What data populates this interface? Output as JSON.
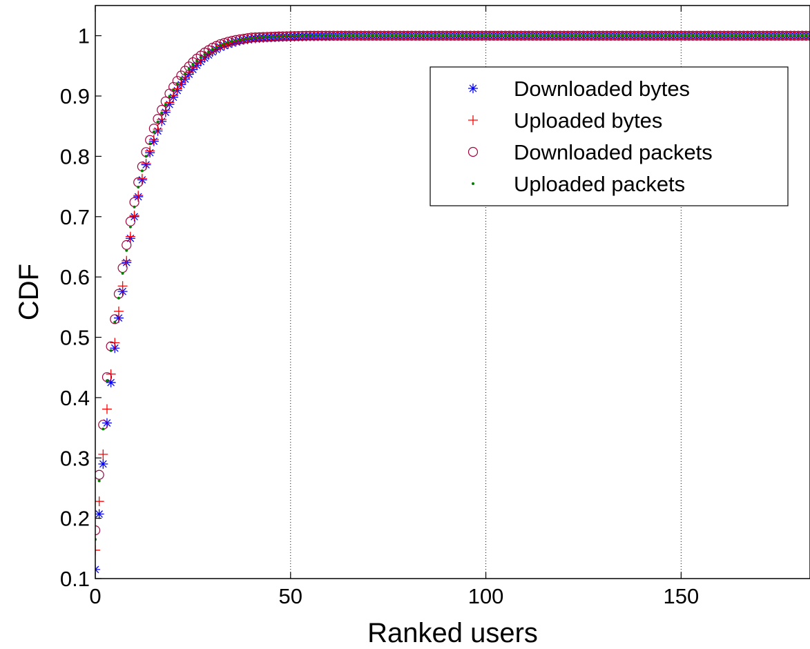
{
  "chart_data": {
    "type": "scatter",
    "title": "",
    "xlabel": "Ranked users",
    "ylabel": "CDF",
    "xlim": [
      0,
      183
    ],
    "ylim": [
      0.1,
      1.05
    ],
    "xticks": [
      0,
      50,
      100,
      150
    ],
    "xtick_labels": [
      "0",
      "50",
      "100",
      "150"
    ],
    "yticks": [
      0.1,
      0.2,
      0.3,
      0.4,
      0.5,
      0.6,
      0.7,
      0.8,
      0.9,
      1.0
    ],
    "ytick_labels": [
      "0.1",
      "0.2",
      "0.3",
      "0.4",
      "0.5",
      "0.6",
      "0.7",
      "0.8",
      "0.9",
      "1"
    ],
    "grid": {
      "x": true,
      "y": false,
      "style": "dotted"
    },
    "legend_position": "top-right",
    "series": [
      {
        "name": "Downloaded bytes",
        "marker": "asterisk",
        "color": "#0000ff",
        "x": [
          0,
          1,
          2,
          3,
          4,
          5,
          6,
          7,
          8,
          9,
          10,
          11,
          12,
          13,
          14,
          15,
          16,
          17,
          18,
          19,
          20,
          21,
          22,
          23,
          24,
          25,
          26,
          27,
          28,
          29,
          30,
          32,
          34,
          36,
          38,
          40,
          44,
          48,
          55,
          65,
          80,
          100,
          120,
          140,
          160,
          183
        ],
        "y": [
          0.115,
          0.207,
          0.29,
          0.358,
          0.425,
          0.482,
          0.532,
          0.576,
          0.624,
          0.664,
          0.7,
          0.733,
          0.761,
          0.786,
          0.806,
          0.825,
          0.842,
          0.858,
          0.873,
          0.886,
          0.898,
          0.909,
          0.919,
          0.928,
          0.936,
          0.944,
          0.951,
          0.957,
          0.963,
          0.968,
          0.973,
          0.981,
          0.986,
          0.99,
          0.993,
          0.995,
          0.997,
          0.998,
          0.999,
          1.0,
          1.0,
          1.0,
          1.0,
          1.0,
          1.0,
          1.0
        ]
      },
      {
        "name": "Uploaded bytes",
        "marker": "plus",
        "color": "#ff0000",
        "x": [
          0,
          1,
          2,
          3,
          4,
          5,
          6,
          7,
          8,
          9,
          10,
          11,
          12,
          13,
          14,
          15,
          16,
          17,
          18,
          19,
          20,
          21,
          22,
          23,
          24,
          25,
          26,
          27,
          28,
          29,
          30,
          32,
          34,
          36,
          38,
          40,
          44,
          48,
          55,
          65,
          80,
          100,
          120,
          140,
          160,
          183
        ],
        "y": [
          0.147,
          0.228,
          0.306,
          0.381,
          0.439,
          0.491,
          0.543,
          0.585,
          0.627,
          0.667,
          0.702,
          0.735,
          0.763,
          0.788,
          0.809,
          0.828,
          0.845,
          0.861,
          0.876,
          0.889,
          0.901,
          0.912,
          0.922,
          0.931,
          0.939,
          0.947,
          0.954,
          0.96,
          0.966,
          0.971,
          0.975,
          0.983,
          0.988,
          0.991,
          0.994,
          0.996,
          0.998,
          0.999,
          1.0,
          1.0,
          1.0,
          1.0,
          1.0,
          1.0,
          1.0,
          1.0
        ]
      },
      {
        "name": "Downloaded packets",
        "marker": "circle",
        "color": "#a0003c",
        "x": [
          0,
          1,
          2,
          3,
          4,
          5,
          6,
          7,
          8,
          9,
          10,
          11,
          12,
          13,
          14,
          15,
          16,
          17,
          18,
          19,
          20,
          21,
          22,
          23,
          24,
          25,
          26,
          27,
          28,
          29,
          30,
          32,
          34,
          36,
          38,
          40,
          44,
          48,
          55,
          65,
          80,
          100,
          120,
          140,
          160,
          183
        ],
        "y": [
          0.18,
          0.272,
          0.355,
          0.434,
          0.485,
          0.53,
          0.572,
          0.615,
          0.653,
          0.692,
          0.724,
          0.757,
          0.783,
          0.807,
          0.827,
          0.846,
          0.862,
          0.877,
          0.891,
          0.904,
          0.915,
          0.925,
          0.934,
          0.942,
          0.949,
          0.956,
          0.962,
          0.967,
          0.972,
          0.976,
          0.98,
          0.986,
          0.99,
          0.993,
          0.995,
          0.997,
          0.998,
          0.999,
          1.0,
          1.0,
          1.0,
          1.0,
          1.0,
          1.0,
          1.0,
          1.0
        ]
      },
      {
        "name": "Uploaded packets",
        "marker": "dot",
        "color": "#007f00",
        "x": [
          0,
          1,
          2,
          3,
          4,
          5,
          6,
          7,
          8,
          9,
          10,
          11,
          12,
          13,
          14,
          15,
          16,
          17,
          18,
          19,
          20,
          21,
          22,
          23,
          24,
          25,
          26,
          27,
          28,
          29,
          30,
          32,
          34,
          36,
          38,
          40,
          44,
          48,
          55,
          65,
          80,
          100,
          120,
          140,
          160,
          183
        ],
        "y": [
          0.165,
          0.262,
          0.348,
          0.428,
          0.478,
          0.525,
          0.565,
          0.606,
          0.644,
          0.683,
          0.716,
          0.749,
          0.776,
          0.8,
          0.821,
          0.84,
          0.857,
          0.872,
          0.886,
          0.899,
          0.91,
          0.92,
          0.929,
          0.937,
          0.945,
          0.952,
          0.958,
          0.964,
          0.969,
          0.973,
          0.977,
          0.984,
          0.989,
          0.992,
          0.994,
          0.996,
          0.998,
          0.999,
          1.0,
          1.0,
          1.0,
          1.0,
          1.0,
          1.0,
          1.0,
          1.0
        ]
      }
    ]
  }
}
